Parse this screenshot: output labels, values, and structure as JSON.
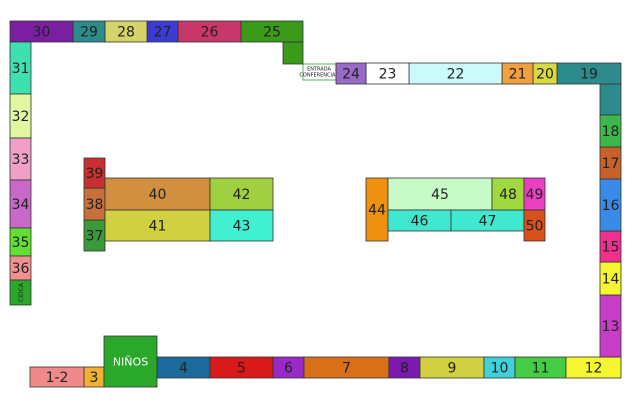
{
  "booths": [
    "1-2",
    "3",
    "NIÑOS",
    "4",
    "5",
    "6",
    "7",
    "8",
    "9",
    "10",
    "11",
    "12",
    "13",
    "14",
    "15",
    "16",
    "17",
    "18",
    "19",
    "20",
    "21",
    "22",
    "23",
    "24",
    "25",
    "26",
    "27",
    "28",
    "29",
    "30",
    "31",
    "32",
    "33",
    "34",
    "35",
    "36",
    "CIDCA",
    "37",
    "38",
    "39",
    "40",
    "41",
    "42",
    "43",
    "44",
    "45",
    "46",
    "47",
    "48",
    "49",
    "50"
  ],
  "entrance": [
    "ENTRADA",
    "CONFERENCIAS"
  ]
}
